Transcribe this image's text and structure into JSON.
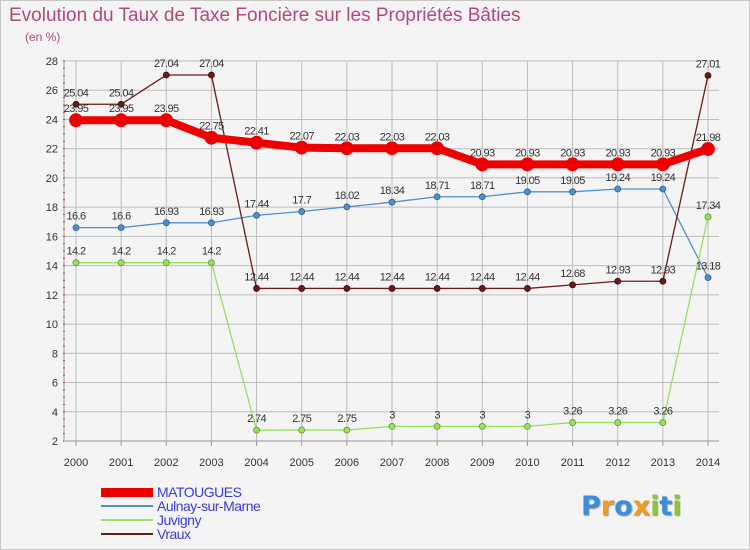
{
  "title": "Evolution du Taux de Taxe Foncière sur les Propriétés Bâties",
  "unit_label": "(en %)",
  "logo": {
    "letters": [
      "P",
      "r",
      "o",
      "x",
      "i",
      "t",
      "i"
    ],
    "colors": [
      "#3a8fd8",
      "#f29a22",
      "#3a8fd8",
      "#f29a22",
      "#8cc63f",
      "#3a8fd8",
      "#8cc63f"
    ]
  },
  "chart_data": {
    "type": "line",
    "title": "Evolution du Taux de Taxe Foncière sur les Propriétés Bâties",
    "ylabel": "(en %)",
    "xlabel": "",
    "ylim": [
      2,
      28
    ],
    "yticks": [
      2,
      4,
      6,
      8,
      10,
      12,
      14,
      16,
      18,
      20,
      22,
      24,
      26,
      28
    ],
    "categories": [
      "2000",
      "2001",
      "2002",
      "2003",
      "2004",
      "2005",
      "2006",
      "2007",
      "2008",
      "2009",
      "2010",
      "2011",
      "2012",
      "2013",
      "2014"
    ],
    "series": [
      {
        "name": "MATOUGUES",
        "color": "#ee0000",
        "values": [
          23.95,
          23.95,
          23.95,
          22.75,
          22.41,
          22.07,
          22.03,
          22.03,
          22.03,
          20.93,
          20.93,
          20.93,
          20.93,
          20.93,
          21.98
        ]
      },
      {
        "name": "Aulnay-sur-Marne",
        "color": "#4f8fcb",
        "values": [
          16.6,
          16.6,
          16.93,
          16.93,
          17.44,
          17.7,
          18.02,
          18.34,
          18.71,
          18.71,
          19.05,
          19.05,
          19.24,
          19.24,
          13.18
        ]
      },
      {
        "name": "Juvigny",
        "color": "#98e060",
        "values": [
          14.2,
          14.2,
          14.2,
          14.2,
          2.74,
          2.75,
          2.75,
          3,
          3,
          3,
          3,
          3.26,
          3.26,
          3.26,
          17.34
        ]
      },
      {
        "name": "Vraux",
        "color": "#6b1a1a",
        "values": [
          25.04,
          25.04,
          27.04,
          27.04,
          12.44,
          12.44,
          12.44,
          12.44,
          12.44,
          12.44,
          12.44,
          12.68,
          12.93,
          12.93,
          27.01
        ]
      }
    ],
    "legend": "bottom-left"
  }
}
